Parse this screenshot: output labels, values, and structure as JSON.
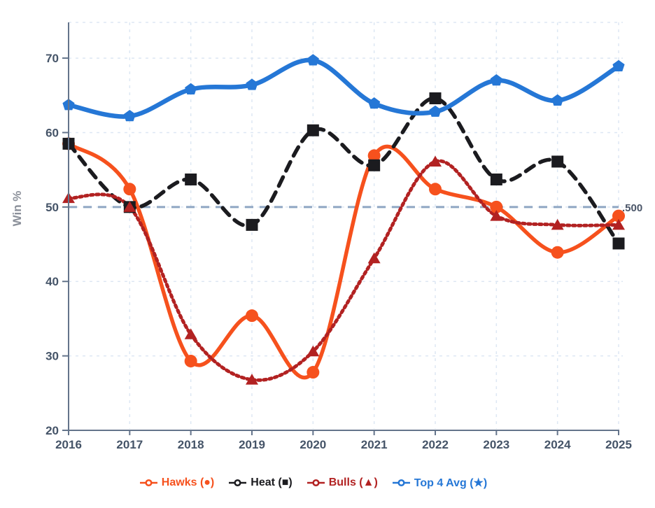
{
  "chart_data": {
    "type": "line",
    "x": [
      2016,
      2017,
      2018,
      2019,
      2020,
      2021,
      2022,
      2023,
      2024,
      2025
    ],
    "xlabel": "",
    "ylabel": "Win %",
    "ylim": [
      20,
      74.8
    ],
    "yticks": [
      20,
      30,
      40,
      50,
      60,
      70
    ],
    "grid": true,
    "legend_position": "bottom",
    "series": [
      {
        "name": "Hawks",
        "legend_label": "Hawks (●)",
        "color": "#f6511d",
        "line_style": "solid",
        "marker": "circle",
        "values": [
          58.5,
          52.4,
          29.3,
          35.4,
          27.8,
          56.9,
          52.4,
          50.0,
          43.9,
          48.8
        ]
      },
      {
        "name": "Heat",
        "legend_label": "Heat (■)",
        "color": "#1b1b1f",
        "line_style": "dashed",
        "marker": "square",
        "values": [
          58.5,
          50.0,
          53.7,
          47.6,
          60.3,
          55.6,
          64.6,
          53.7,
          56.1,
          45.1
        ]
      },
      {
        "name": "Bulls",
        "legend_label": "Bulls (▲)",
        "color": "#b22222",
        "line_style": "dotted",
        "marker": "triangle",
        "values": [
          51.2,
          50.0,
          32.9,
          26.8,
          30.6,
          43.1,
          56.1,
          48.8,
          47.6,
          47.6
        ]
      },
      {
        "name": "Top 4 Avg",
        "legend_label": "Top 4 Avg (★)",
        "color": "#2577d6",
        "line_style": "solid",
        "marker": "star",
        "values": [
          63.7,
          62.2,
          65.8,
          66.4,
          69.7,
          63.9,
          62.8,
          67.0,
          64.3,
          68.9
        ]
      }
    ],
    "reference_line": {
      "value": 50,
      "label": ".500"
    }
  },
  "colors": {
    "axis": "#64748b",
    "tick_text": "#455468",
    "grid": "#dde7f3",
    "ref_line": "#8fa6c3",
    "ref_label": "#4a5568",
    "ylabel_text": "#8b909a",
    "background": "#ffffff"
  }
}
